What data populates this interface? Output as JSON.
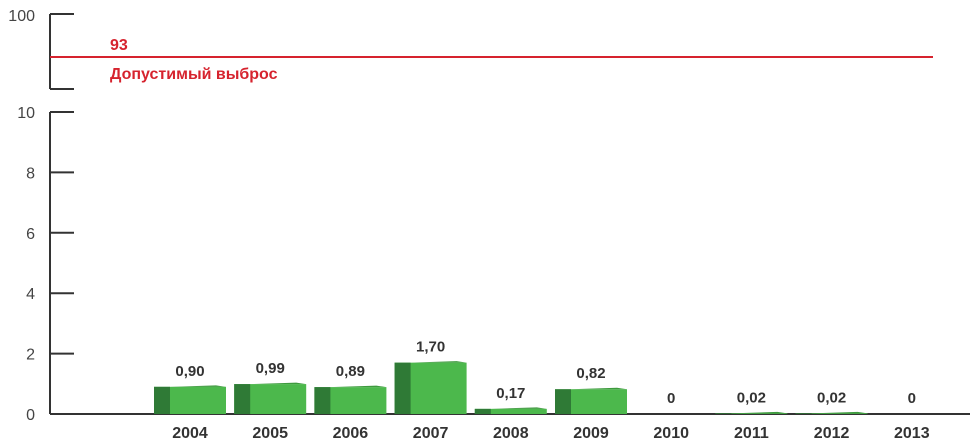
{
  "chart_data": {
    "type": "bar",
    "categories": [
      "2004",
      "2005",
      "2006",
      "2007",
      "2008",
      "2009",
      "2010",
      "2011",
      "2012",
      "2013"
    ],
    "values": [
      0.9,
      0.99,
      0.89,
      1.7,
      0.17,
      0.82,
      0,
      0.02,
      0.02,
      0
    ],
    "value_labels": [
      "0,90",
      "0,99",
      "0,89",
      "1,70",
      "0,17",
      "0,82",
      "0",
      "0,02",
      "0,02",
      "0"
    ],
    "ylim": [
      0,
      10
    ],
    "yticks": [
      "0",
      "2",
      "4",
      "6",
      "8",
      "10"
    ],
    "axis_break": true,
    "upper_scale_label": "100",
    "limit": {
      "value": 93,
      "value_label": "93",
      "label": "Допустимый выброс",
      "color": "#d6232e"
    },
    "bar_color": "#4cb84c",
    "bar_side_color": "#2f7a36",
    "grid": false
  }
}
